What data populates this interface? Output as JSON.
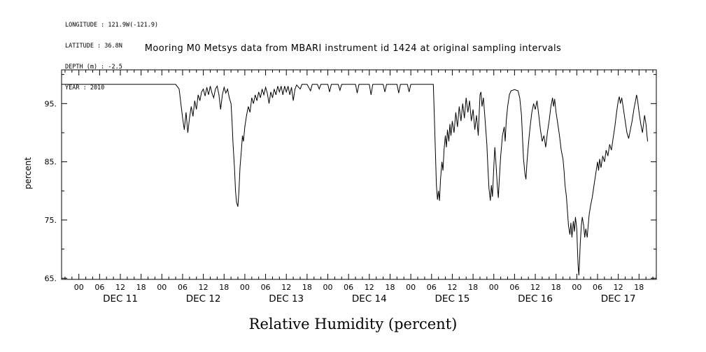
{
  "header": {
    "lines": [
      "LONGITUDE : 121.9W(-121.9)",
      "LATITUDE : 36.8N",
      "DEPTH (m) : -2.5",
      "YEAR : 2010"
    ]
  },
  "title": "Mooring M0 Metsys data from MBARI instrument id 1424 at original sampling intervals",
  "chart_data": {
    "type": "line",
    "title": "Mooring M0 Metsys data from MBARI instrument id 1424 at original sampling intervals",
    "xlabel": "Relative Humidity (percent)",
    "caption": "Relative Humidity (percent)",
    "ylabel": "percent",
    "x_axis_description": "time in hours since DEC 11 2010 00:00",
    "ylim": [
      64.8,
      100.8
    ],
    "xlim_hours": [
      -5,
      167
    ],
    "grid": false,
    "legend": "none",
    "line_color": "#000000",
    "background": "#ffffff",
    "y_major_ticks": [
      65,
      75,
      85,
      95
    ],
    "y_tick_labels": [
      "65.",
      "75.",
      "85.",
      "95."
    ],
    "y_minor_step": 5,
    "x_major_step_hours": 6,
    "x_major_range_hours": [
      0,
      162
    ],
    "x_minor_step_hours": 2,
    "x_tick_label_cycle": [
      "00",
      "06",
      "12",
      "18"
    ],
    "days": [
      {
        "label": "DEC 11",
        "center_hours": 12
      },
      {
        "label": "DEC 12",
        "center_hours": 36
      },
      {
        "label": "DEC 13",
        "center_hours": 60
      },
      {
        "label": "DEC 14",
        "center_hours": 84
      },
      {
        "label": "DEC 15",
        "center_hours": 108
      },
      {
        "label": "DEC 16",
        "center_hours": 132
      },
      {
        "label": "DEC 17",
        "center_hours": 156
      }
    ],
    "series": [
      {
        "name": "relative_humidity_percent",
        "points": [
          [
            -5,
            98.3
          ],
          [
            20,
            98.3
          ],
          [
            28,
            98.3
          ],
          [
            29,
            97.5
          ],
          [
            29.5,
            95
          ],
          [
            30,
            92.5
          ],
          [
            30.5,
            90.5
          ],
          [
            31,
            93.5
          ],
          [
            31.5,
            90
          ],
          [
            32,
            92.5
          ],
          [
            32.5,
            94.5
          ],
          [
            33,
            92.8
          ],
          [
            33.5,
            95.5
          ],
          [
            34,
            94
          ],
          [
            34.5,
            96.5
          ],
          [
            35,
            95.5
          ],
          [
            35.5,
            97
          ],
          [
            36,
            97.5
          ],
          [
            36.5,
            96.3
          ],
          [
            37,
            97.8
          ],
          [
            37.5,
            96.5
          ],
          [
            38,
            98
          ],
          [
            38.5,
            96.8
          ],
          [
            39,
            96
          ],
          [
            39.5,
            97.5
          ],
          [
            40,
            98
          ],
          [
            40.5,
            96.5
          ],
          [
            41,
            94
          ],
          [
            41.5,
            96.5
          ],
          [
            42,
            97.8
          ],
          [
            42.5,
            96.8
          ],
          [
            43,
            97.5
          ],
          [
            43.5,
            96
          ],
          [
            44,
            95
          ],
          [
            44.3,
            92
          ],
          [
            44.6,
            88
          ],
          [
            45,
            84
          ],
          [
            45.3,
            80
          ],
          [
            45.6,
            78
          ],
          [
            46,
            77.3
          ],
          [
            46.3,
            80
          ],
          [
            46.6,
            84
          ],
          [
            47,
            87
          ],
          [
            47.3,
            89.5
          ],
          [
            47.6,
            88.5
          ],
          [
            48,
            91
          ],
          [
            48.5,
            93
          ],
          [
            49,
            94.5
          ],
          [
            49.5,
            93.5
          ],
          [
            50,
            96
          ],
          [
            50.5,
            95
          ],
          [
            51,
            96.5
          ],
          [
            51.5,
            95.5
          ],
          [
            52,
            97
          ],
          [
            52.5,
            96
          ],
          [
            53,
            97.5
          ],
          [
            53.5,
            96.5
          ],
          [
            54,
            97.8
          ],
          [
            54.5,
            96.8
          ],
          [
            55,
            95
          ],
          [
            55.5,
            97
          ],
          [
            56,
            96
          ],
          [
            56.5,
            97.5
          ],
          [
            57,
            96.5
          ],
          [
            57.5,
            98
          ],
          [
            58,
            97
          ],
          [
            58.5,
            98
          ],
          [
            59,
            96.5
          ],
          [
            59.5,
            98
          ],
          [
            60,
            97
          ],
          [
            60.5,
            98
          ],
          [
            61,
            96.5
          ],
          [
            61.5,
            97.8
          ],
          [
            62,
            95.5
          ],
          [
            62.5,
            97.5
          ],
          [
            63,
            98.2
          ],
          [
            64,
            97.5
          ],
          [
            64.5,
            98.3
          ],
          [
            66,
            98.3
          ],
          [
            67,
            97.2
          ],
          [
            67.5,
            98.3
          ],
          [
            69,
            98.3
          ],
          [
            69.5,
            97.5
          ],
          [
            70,
            98.3
          ],
          [
            72,
            98.3
          ],
          [
            72.5,
            97
          ],
          [
            73,
            98.3
          ],
          [
            75,
            98.3
          ],
          [
            75.5,
            97.3
          ],
          [
            76,
            98.3
          ],
          [
            78,
            98.3
          ],
          [
            80,
            98.3
          ],
          [
            80.5,
            96.8
          ],
          [
            81,
            98.3
          ],
          [
            84,
            98.3
          ],
          [
            84.5,
            96.5
          ],
          [
            85,
            98.3
          ],
          [
            88,
            98.3
          ],
          [
            88.5,
            97
          ],
          [
            89,
            98.3
          ],
          [
            92,
            98.3
          ],
          [
            92.5,
            96.8
          ],
          [
            93,
            98.3
          ],
          [
            95,
            98.3
          ],
          [
            95.5,
            97
          ],
          [
            96,
            98.3
          ],
          [
            102.5,
            98.3
          ],
          [
            102.8,
            93
          ],
          [
            103.1,
            87
          ],
          [
            103.4,
            81
          ],
          [
            103.7,
            78.5
          ],
          [
            104,
            80
          ],
          [
            104.3,
            78.3
          ],
          [
            104.6,
            82
          ],
          [
            105,
            85
          ],
          [
            105.3,
            83.5
          ],
          [
            105.6,
            87
          ],
          [
            106,
            89.5
          ],
          [
            106.3,
            87.5
          ],
          [
            106.6,
            90.5
          ],
          [
            107,
            88.5
          ],
          [
            107.3,
            91.5
          ],
          [
            107.6,
            89.5
          ],
          [
            108,
            92
          ],
          [
            108.5,
            90
          ],
          [
            109,
            93.5
          ],
          [
            109.5,
            91
          ],
          [
            110,
            94.5
          ],
          [
            110.5,
            92
          ],
          [
            111,
            95
          ],
          [
            111.5,
            92.5
          ],
          [
            112,
            96
          ],
          [
            112.5,
            93.5
          ],
          [
            113,
            95.5
          ],
          [
            113.5,
            92
          ],
          [
            114,
            94
          ],
          [
            114.5,
            90.5
          ],
          [
            115,
            93
          ],
          [
            115.5,
            89.5
          ],
          [
            116,
            96.5
          ],
          [
            116.3,
            97
          ],
          [
            116.6,
            94.5
          ],
          [
            117,
            96
          ],
          [
            117.5,
            92
          ],
          [
            118,
            88
          ],
          [
            118.3,
            84
          ],
          [
            118.6,
            80.5
          ],
          [
            119,
            78.3
          ],
          [
            119.3,
            81
          ],
          [
            119.6,
            79
          ],
          [
            120,
            84
          ],
          [
            120.3,
            87.5
          ],
          [
            120.6,
            85
          ],
          [
            121,
            81
          ],
          [
            121.3,
            78.8
          ],
          [
            121.6,
            82
          ],
          [
            122,
            86
          ],
          [
            122.5,
            89.5
          ],
          [
            123,
            91
          ],
          [
            123.3,
            88.5
          ],
          [
            123.6,
            92
          ],
          [
            124,
            94.5
          ],
          [
            124.5,
            96.5
          ],
          [
            125,
            97.2
          ],
          [
            126,
            97.4
          ],
          [
            127,
            97.2
          ],
          [
            127.5,
            96
          ],
          [
            128,
            93
          ],
          [
            128.3,
            89
          ],
          [
            128.6,
            85.5
          ],
          [
            129,
            83
          ],
          [
            129.3,
            82
          ],
          [
            129.6,
            85
          ],
          [
            130,
            88
          ],
          [
            130.5,
            91
          ],
          [
            131,
            93.5
          ],
          [
            131.5,
            95
          ],
          [
            132,
            94
          ],
          [
            132.5,
            95.5
          ],
          [
            133,
            93
          ],
          [
            133.5,
            90.5
          ],
          [
            134,
            88.5
          ],
          [
            134.5,
            89.5
          ],
          [
            135,
            87.5
          ],
          [
            135.5,
            90
          ],
          [
            136,
            92
          ],
          [
            136.5,
            94.5
          ],
          [
            137,
            96
          ],
          [
            137.3,
            94.5
          ],
          [
            137.6,
            95.8
          ],
          [
            138,
            93.5
          ],
          [
            138.5,
            91.5
          ],
          [
            139,
            89.5
          ],
          [
            139.5,
            87
          ],
          [
            140,
            85.5
          ],
          [
            140.3,
            83.5
          ],
          [
            140.6,
            81
          ],
          [
            141,
            79
          ],
          [
            141.3,
            76.5
          ],
          [
            141.6,
            74
          ],
          [
            142,
            72.5
          ],
          [
            142.3,
            74.5
          ],
          [
            142.6,
            72
          ],
          [
            143,
            74.8
          ],
          [
            143.3,
            73
          ],
          [
            143.6,
            75.5
          ],
          [
            144,
            73.5
          ],
          [
            144.2,
            70
          ],
          [
            144.4,
            67
          ],
          [
            144.6,
            65.5
          ],
          [
            144.8,
            68
          ],
          [
            145,
            71
          ],
          [
            145.3,
            74
          ],
          [
            145.6,
            75.5
          ],
          [
            146,
            74
          ],
          [
            146.3,
            72
          ],
          [
            146.6,
            73.5
          ],
          [
            147,
            72
          ],
          [
            147.3,
            74
          ],
          [
            147.6,
            76
          ],
          [
            148,
            77.5
          ],
          [
            148.5,
            79
          ],
          [
            149,
            81
          ],
          [
            149.5,
            83
          ],
          [
            150,
            85
          ],
          [
            150.3,
            83.5
          ],
          [
            150.6,
            85.5
          ],
          [
            151,
            84
          ],
          [
            151.5,
            86
          ],
          [
            152,
            85
          ],
          [
            152.5,
            87
          ],
          [
            153,
            86
          ],
          [
            153.5,
            88
          ],
          [
            154,
            87
          ],
          [
            154.5,
            89
          ],
          [
            155,
            91
          ],
          [
            155.5,
            93.5
          ],
          [
            156,
            95.5
          ],
          [
            156.3,
            96.2
          ],
          [
            156.6,
            95
          ],
          [
            157,
            96
          ],
          [
            157.5,
            94
          ],
          [
            158,
            92
          ],
          [
            158.5,
            90
          ],
          [
            159,
            89
          ],
          [
            159.5,
            90.5
          ],
          [
            160,
            92
          ],
          [
            160.5,
            94
          ],
          [
            161,
            95.5
          ],
          [
            161.3,
            96.5
          ],
          [
            161.6,
            95.5
          ],
          [
            162,
            93.5
          ],
          [
            162.5,
            91.5
          ],
          [
            163,
            90
          ],
          [
            163.3,
            91.5
          ],
          [
            163.6,
            93
          ],
          [
            164,
            91.5
          ],
          [
            164.3,
            89.5
          ],
          [
            164.5,
            88.5
          ]
        ]
      }
    ]
  }
}
